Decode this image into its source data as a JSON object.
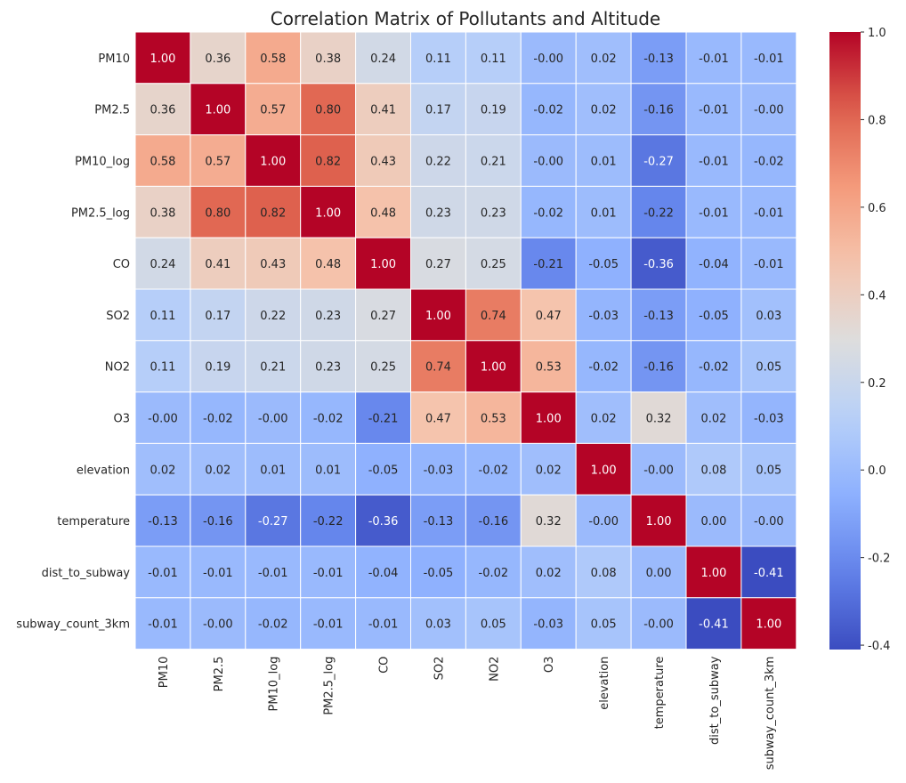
{
  "chart_data": {
    "type": "heatmap",
    "title": "Correlation Matrix of Pollutants and Altitude",
    "rows": [
      "PM10",
      "PM2.5",
      "PM10_log",
      "PM2.5_log",
      "CO",
      "SO2",
      "NO2",
      "O3",
      "elevation",
      "temperature",
      "dist_to_subway",
      "subway_count_3km"
    ],
    "columns": [
      "PM10",
      "PM2.5",
      "PM10_log",
      "PM2.5_log",
      "CO",
      "SO2",
      "NO2",
      "O3",
      "elevation",
      "temperature",
      "dist_to_subway",
      "subway_count_3km"
    ],
    "values": [
      [
        1.0,
        0.36,
        0.58,
        0.38,
        0.24,
        0.11,
        0.11,
        -0.0,
        0.02,
        -0.13,
        -0.01,
        -0.01
      ],
      [
        0.36,
        1.0,
        0.57,
        0.8,
        0.41,
        0.17,
        0.19,
        -0.02,
        0.02,
        -0.16,
        -0.01,
        -0.0
      ],
      [
        0.58,
        0.57,
        1.0,
        0.82,
        0.43,
        0.22,
        0.21,
        -0.0,
        0.01,
        -0.27,
        -0.01,
        -0.02
      ],
      [
        0.38,
        0.8,
        0.82,
        1.0,
        0.48,
        0.23,
        0.23,
        -0.02,
        0.01,
        -0.22,
        -0.01,
        -0.01
      ],
      [
        0.24,
        0.41,
        0.43,
        0.48,
        1.0,
        0.27,
        0.25,
        -0.21,
        -0.05,
        -0.36,
        -0.04,
        -0.01
      ],
      [
        0.11,
        0.17,
        0.22,
        0.23,
        0.27,
        1.0,
        0.74,
        0.47,
        -0.03,
        -0.13,
        -0.05,
        0.03
      ],
      [
        0.11,
        0.19,
        0.21,
        0.23,
        0.25,
        0.74,
        1.0,
        0.53,
        -0.02,
        -0.16,
        -0.02,
        0.05
      ],
      [
        -0.0,
        -0.02,
        -0.0,
        -0.02,
        -0.21,
        0.47,
        0.53,
        1.0,
        0.02,
        0.32,
        0.02,
        -0.03
      ],
      [
        0.02,
        0.02,
        0.01,
        0.01,
        -0.05,
        -0.03,
        -0.02,
        0.02,
        1.0,
        -0.0,
        0.08,
        0.05
      ],
      [
        -0.13,
        -0.16,
        -0.27,
        -0.22,
        -0.36,
        -0.13,
        -0.16,
        0.32,
        -0.0,
        1.0,
        0.0,
        -0.0
      ],
      [
        -0.01,
        -0.01,
        -0.01,
        -0.01,
        -0.04,
        -0.05,
        -0.02,
        0.02,
        0.08,
        0.0,
        1.0,
        -0.41
      ],
      [
        -0.01,
        -0.0,
        -0.02,
        -0.01,
        -0.01,
        0.03,
        0.05,
        -0.03,
        0.05,
        -0.0,
        -0.41,
        1.0
      ]
    ],
    "value_format": "2 decimals",
    "colormap": "coolwarm",
    "vmin": -0.41,
    "vmax": 1.0,
    "colorbar_ticks": [
      "1.0",
      "0.8",
      "0.6",
      "0.4",
      "0.2",
      "0.0",
      "-0.2",
      "-0.4"
    ],
    "colorbar_tick_values": [
      1.0,
      0.8,
      0.6,
      0.4,
      0.2,
      0.0,
      -0.2,
      -0.4
    ],
    "grid": false,
    "legend": "colorbar-right"
  }
}
